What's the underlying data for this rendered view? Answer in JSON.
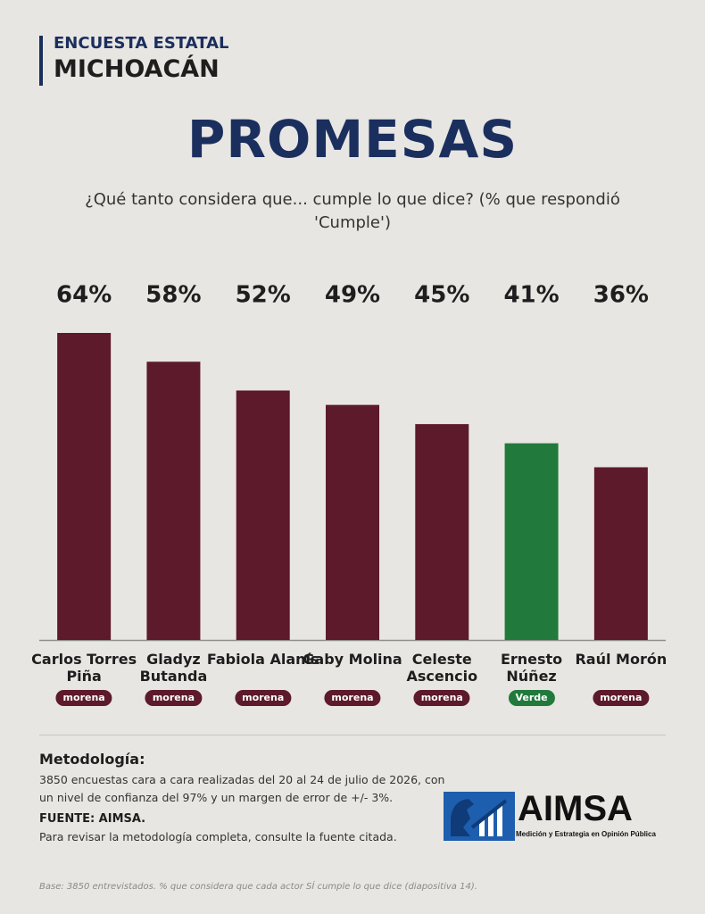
{
  "header": {
    "kicker": "ENCUESTA ESTATAL",
    "state": "MICHOACÁN"
  },
  "chart_data": {
    "type": "bar",
    "title": "PROMESAS",
    "subtitle": "¿Qué tanto considera que... cumple lo que dice? (% que respondió 'Cumple')",
    "categories": [
      "Carlos Torres Piña",
      "Gladyz Butanda",
      "Fabiola Alanís",
      "Gaby Molina",
      "Celeste Ascencio",
      "Ernesto Núñez",
      "Raúl Morón"
    ],
    "parties": [
      "morena",
      "morena",
      "morena",
      "morena",
      "morena",
      "Verde",
      "morena"
    ],
    "values": [
      64,
      58,
      52,
      49,
      45,
      41,
      36
    ],
    "value_labels": [
      "64%",
      "58%",
      "52%",
      "49%",
      "45%",
      "41%",
      "36%"
    ],
    "colors": [
      "#5c1a2a",
      "#5c1a2a",
      "#5c1a2a",
      "#5c1a2a",
      "#5c1a2a",
      "#217a3c",
      "#5c1a2a"
    ]
  },
  "methodology": {
    "heading": "Metodología:",
    "text": "3850 encuestas cara a cara realizadas del 20 al 24 de julio de 2026, con un nivel de confianza del 97% y un margen de error de +/- 3%.",
    "source_heading": "FUENTE: AIMSA.",
    "source_text": "Para revisar la metodología completa, consulte la fuente citada."
  },
  "logo": {
    "name": "AIMSA",
    "tagline": "Medición y Estrategia en Opinión Pública"
  },
  "footer": {
    "base": "Base: 3850 entrevistados. % que considera que cada actor SÍ cumple lo que dice (diapositiva 14)."
  }
}
